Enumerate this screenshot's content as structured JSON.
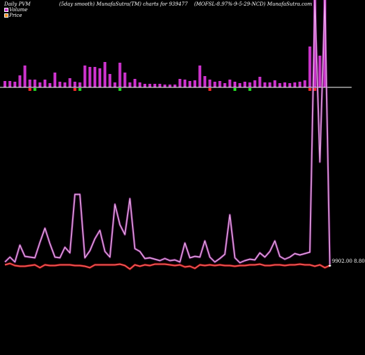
{
  "header": {
    "left": "Daily PVM",
    "mid": "(5day smooth) MunafaSutra(TM) charts for 939477",
    "right": "(MOFSL-8.97%-9-5-29-NCD) MunafaSutra.com"
  },
  "legend": {
    "volume": "Volume",
    "price": "Price"
  },
  "price_label": "9902.00 8.80",
  "colors": {
    "volume_line": "#e37ce3",
    "price_line": "#ff1a1a",
    "bar_up": "#cc33cc",
    "bar_down_red": "#ff2a2a",
    "bar_down_green": "#22dd22",
    "baseline": "#ffffff",
    "background": "#000000"
  },
  "chart_data": {
    "type": "line+bar",
    "n_points": 66,
    "bars": {
      "heights": [
        9,
        9,
        8,
        17,
        31,
        11,
        11,
        7,
        11,
        6,
        21,
        8,
        7,
        13,
        8,
        7,
        31,
        29,
        29,
        27,
        36,
        19,
        7,
        35,
        21,
        7,
        12,
        7,
        5,
        5,
        5,
        5,
        4,
        4,
        4,
        12,
        11,
        9,
        10,
        31,
        16,
        11,
        8,
        9,
        6,
        11,
        8,
        6,
        8,
        7,
        10,
        15,
        7,
        7,
        10,
        6,
        7,
        6,
        7,
        8,
        10,
        58,
        300,
        45,
        280,
        0
      ],
      "down": [
        0,
        0,
        0,
        0,
        0,
        1,
        2,
        0,
        0,
        0,
        0,
        0,
        0,
        0,
        1,
        2,
        0,
        0,
        0,
        0,
        0,
        0,
        0,
        2,
        0,
        0,
        0,
        0,
        0,
        0,
        0,
        0,
        0,
        0,
        0,
        0,
        0,
        0,
        0,
        0,
        0,
        1,
        0,
        0,
        0,
        0,
        2,
        0,
        0,
        2,
        0,
        0,
        0,
        0,
        0,
        0,
        0,
        0,
        0,
        0,
        0,
        1,
        1,
        0,
        0,
        0
      ]
    },
    "series": [
      {
        "name": "Volume",
        "values": [
          372,
          365,
          372,
          348,
          364,
          365,
          366,
          344,
          324,
          346,
          365,
          366,
          351,
          359,
          276,
          276,
          366,
          356,
          339,
          327,
          357,
          365,
          290,
          319,
          333,
          282,
          353,
          357,
          367,
          366,
          368,
          370,
          367,
          370,
          369,
          372,
          345,
          366,
          364,
          365,
          342,
          365,
          372,
          367,
          361,
          305,
          366,
          373,
          370,
          368,
          369,
          359,
          365,
          357,
          342,
          364,
          368,
          365,
          360,
          362,
          360,
          358,
          0,
          230,
          0,
          375
        ]
      },
      {
        "name": "Price",
        "values": [
          376,
          374,
          377,
          378,
          378,
          377,
          376,
          380,
          376,
          377,
          377,
          376,
          376,
          376,
          377,
          377,
          378,
          380,
          376,
          376,
          376,
          376,
          376,
          375,
          377,
          382,
          376,
          378,
          376,
          377,
          375,
          375,
          375,
          376,
          377,
          376,
          379,
          378,
          381,
          376,
          377,
          376,
          377,
          376,
          377,
          377,
          378,
          377,
          377,
          376,
          376,
          375,
          377,
          377,
          376,
          376,
          377,
          376,
          376,
          375,
          376,
          376,
          378,
          376,
          380,
          377
        ]
      }
    ]
  }
}
